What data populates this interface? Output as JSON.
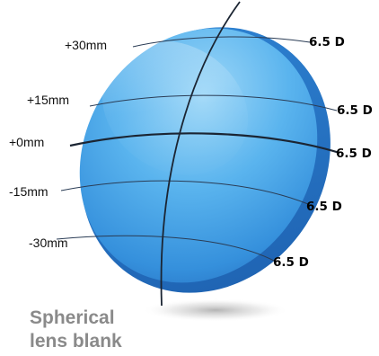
{
  "caption": {
    "line1": "Spherical",
    "line2": "lens blank"
  },
  "height_labels": [
    "+30mm",
    "+15mm",
    "+0mm",
    "-15mm",
    "-30mm"
  ],
  "power_labels": [
    "6.5 D",
    "6.5 D",
    "6.5 D",
    "6.5 D",
    "6.5 D"
  ],
  "colors": {
    "lens_light": "#8fd0f6",
    "lens_mid": "#3b9fe6",
    "lens_dark": "#1f6fc0",
    "meridian_line": "#1b2533",
    "leader_line": "#555555",
    "caption_text": "#8a8a8a"
  }
}
